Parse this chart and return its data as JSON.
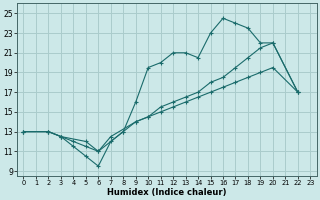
{
  "xlabel": "Humidex (Indice chaleur)",
  "bg_color": "#cce8e8",
  "grid_color": "#aacccc",
  "line_color": "#1a6b6b",
  "xlim": [
    -0.5,
    23.5
  ],
  "ylim": [
    8.5,
    26
  ],
  "xticks": [
    0,
    1,
    2,
    3,
    4,
    5,
    6,
    7,
    8,
    9,
    10,
    11,
    12,
    13,
    14,
    15,
    16,
    17,
    18,
    19,
    20,
    21,
    22,
    23
  ],
  "yticks": [
    9,
    11,
    13,
    15,
    17,
    19,
    21,
    23,
    25
  ],
  "line1_x": [
    0,
    2,
    3,
    4,
    5,
    6,
    7,
    8,
    9,
    10,
    11,
    12,
    13,
    14,
    15,
    16,
    17,
    18,
    19,
    20,
    22
  ],
  "line1_y": [
    13,
    13,
    12.5,
    11.5,
    10.5,
    9.5,
    12,
    13,
    16,
    19.5,
    20,
    21,
    21,
    20.5,
    23,
    24.5,
    24,
    23.5,
    22,
    22,
    17
  ],
  "line2_x": [
    0,
    2,
    3,
    4,
    5,
    6,
    7,
    9,
    10,
    11,
    12,
    13,
    14,
    15,
    16,
    17,
    18,
    19,
    20,
    22
  ],
  "line2_y": [
    13,
    13,
    12.5,
    12,
    11.5,
    11,
    12.5,
    14,
    14.5,
    15.5,
    16,
    16.5,
    17,
    18,
    18.5,
    19.5,
    20.5,
    21.5,
    22,
    17
  ],
  "line3_x": [
    0,
    2,
    3,
    5,
    6,
    8,
    9,
    10,
    11,
    12,
    13,
    14,
    15,
    16,
    17,
    18,
    19,
    20,
    22
  ],
  "line3_y": [
    13,
    13,
    12.5,
    12,
    11,
    13,
    14,
    14.5,
    15,
    15.5,
    16,
    16.5,
    17,
    17.5,
    18,
    18.5,
    19,
    19.5,
    17
  ]
}
